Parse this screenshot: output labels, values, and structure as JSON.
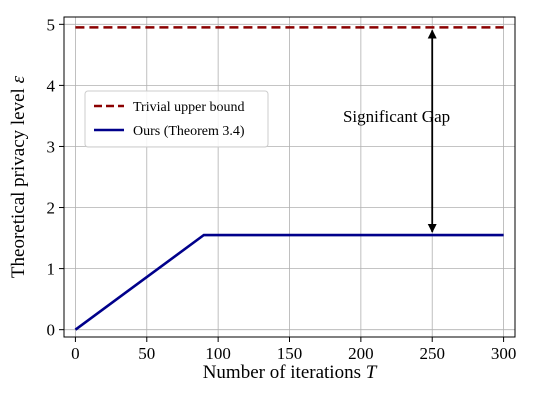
{
  "chart_data": {
    "type": "line",
    "xlabel": "Number of iterations",
    "xlabel_var": "T",
    "ylabel": "Theoretical privacy level",
    "ylabel_var": "ε",
    "xlim": [
      -8,
      308
    ],
    "ylim": [
      -0.12,
      5.12
    ],
    "xticks": [
      0,
      50,
      100,
      150,
      200,
      250,
      300
    ],
    "yticks": [
      0,
      1,
      2,
      3,
      4,
      5
    ],
    "grid": true,
    "legend_position": "upper-left",
    "series": [
      {
        "name": "Trivial upper bound",
        "color": "#8b0000",
        "style": "dashed",
        "x": [
          0,
          300
        ],
        "y": [
          4.95,
          4.95
        ]
      },
      {
        "name": "Ours (Theorem 3.4)",
        "color": "#00008b",
        "style": "solid",
        "x": [
          0,
          90,
          300
        ],
        "y": [
          0,
          1.55,
          1.55
        ]
      }
    ],
    "annotations": [
      {
        "text": "Significant Gap",
        "arrow": {
          "x": 250,
          "y_from": 4.95,
          "y_to": 1.55,
          "double_headed": true
        },
        "text_x": 225,
        "text_y": 3.5
      }
    ]
  }
}
